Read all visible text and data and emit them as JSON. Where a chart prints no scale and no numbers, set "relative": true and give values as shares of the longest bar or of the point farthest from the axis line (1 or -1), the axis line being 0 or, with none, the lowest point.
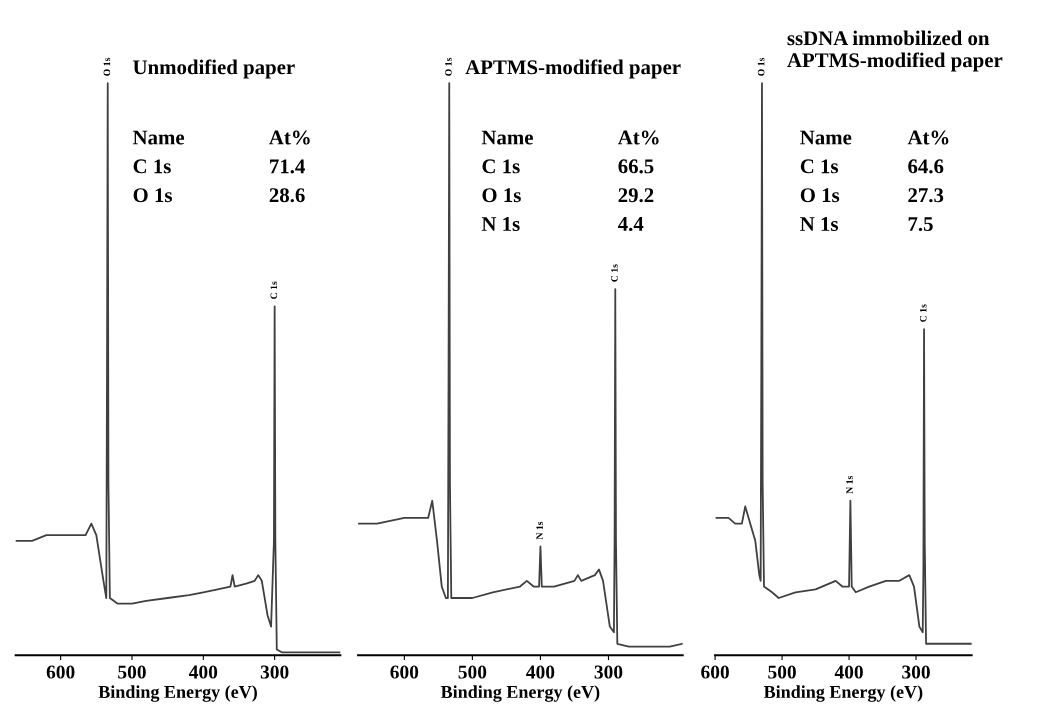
{
  "chart_data": [
    {
      "type": "line",
      "relative": true,
      "title": "Unmodified paper",
      "xlabel": "Binding Energy (eV)",
      "xlim": [
        663,
        208
      ],
      "xticks": [
        600,
        500,
        400,
        300
      ],
      "series": [
        {
          "color": "#404040",
          "x": [
            663,
            640,
            620,
            600,
            580,
            565,
            557,
            550,
            540,
            536,
            535,
            534,
            533,
            531,
            520,
            500,
            480,
            450,
            420,
            400,
            380,
            362,
            359,
            356,
            340,
            328,
            323,
            318,
            310,
            305,
            301,
            300,
            299,
            297,
            290,
            270,
            250,
            230,
            208
          ],
          "values": [
            0.2,
            0.2,
            0.21,
            0.21,
            0.21,
            0.21,
            0.23,
            0.21,
            0.13,
            0.1,
            0.5,
            1.0,
            0.3,
            0.1,
            0.09,
            0.09,
            0.095,
            0.1,
            0.105,
            0.11,
            0.115,
            0.12,
            0.14,
            0.12,
            0.125,
            0.13,
            0.14,
            0.13,
            0.07,
            0.05,
            0.2,
            0.61,
            0.2,
            0.01,
            0.005,
            0.005,
            0.005,
            0.005,
            0.005
          ]
        }
      ],
      "annotations": [
        {
          "text": "O 1s",
          "x": 534,
          "y": 1.0
        },
        {
          "text": "C 1s",
          "x": 300,
          "y": 0.61
        },
        "Name",
        "At%",
        "C 1s",
        "71.4",
        "O 1s",
        "28.6"
      ]
    },
    {
      "type": "line",
      "relative": true,
      "title": "APTMS-modified paper",
      "xlabel": "Binding Energy (eV)",
      "xlim": [
        668,
        191
      ],
      "xticks": [
        600,
        500,
        400,
        300
      ],
      "series": [
        {
          "color": "#404040",
          "x": [
            668,
            640,
            600,
            575,
            565,
            559,
            552,
            545,
            539,
            536,
            535,
            534,
            533,
            531,
            520,
            500,
            470,
            430,
            420,
            410,
            402,
            400,
            398,
            380,
            350,
            345,
            340,
            320,
            314,
            308,
            298,
            292,
            291,
            290,
            289,
            287,
            270,
            240,
            210,
            191
          ],
          "values": [
            0.23,
            0.23,
            0.24,
            0.24,
            0.24,
            0.27,
            0.2,
            0.12,
            0.1,
            0.1,
            0.5,
            1.0,
            0.3,
            0.1,
            0.1,
            0.1,
            0.11,
            0.12,
            0.13,
            0.12,
            0.12,
            0.19,
            0.12,
            0.12,
            0.13,
            0.14,
            0.13,
            0.14,
            0.15,
            0.13,
            0.05,
            0.04,
            0.2,
            0.64,
            0.2,
            0.02,
            0.015,
            0.015,
            0.015,
            0.02
          ]
        }
      ],
      "annotations": [
        {
          "text": "O 1s",
          "x": 534,
          "y": 1.0
        },
        {
          "text": "N 1s",
          "x": 400,
          "y": 0.19
        },
        {
          "text": "C 1s",
          "x": 290,
          "y": 0.64
        },
        "Name",
        "At%",
        "C 1s",
        "66.5",
        "O 1s",
        "29.2",
        "N 1s",
        "4.4"
      ]
    },
    {
      "type": "line",
      "relative": true,
      "title": "ssDNA immobilized on\nAPTMS-modified paper",
      "xlabel": "Binding Energy (eV)",
      "xlim": [
        600,
        217
      ],
      "xticks": [
        600,
        500,
        400,
        300
      ],
      "series": [
        {
          "color": "#404040",
          "x": [
            598,
            580,
            570,
            560,
            555,
            550,
            540,
            534,
            532,
            531,
            530,
            529,
            527,
            515,
            505,
            480,
            450,
            420,
            410,
            400,
            398,
            396,
            390,
            370,
            345,
            325,
            310,
            303,
            295,
            290,
            289,
            288,
            287,
            285,
            260,
            240,
            217
          ],
          "values": [
            0.24,
            0.24,
            0.23,
            0.23,
            0.26,
            0.24,
            0.2,
            0.14,
            0.13,
            0.5,
            1.0,
            0.3,
            0.12,
            0.11,
            0.1,
            0.11,
            0.115,
            0.13,
            0.12,
            0.12,
            0.27,
            0.12,
            0.11,
            0.12,
            0.13,
            0.13,
            0.14,
            0.12,
            0.05,
            0.04,
            0.15,
            0.57,
            0.2,
            0.02,
            0.02,
            0.02,
            0.02
          ]
        }
      ],
      "annotations": [
        {
          "text": "O 1s",
          "x": 530,
          "y": 1.0
        },
        {
          "text": "N 1s",
          "x": 398,
          "y": 0.27
        },
        {
          "text": "C 1s",
          "x": 288,
          "y": 0.57
        },
        "Name",
        "At%",
        "C 1s",
        "64.6",
        "O 1s",
        "27.3",
        "N 1s",
        "7.5"
      ]
    }
  ]
}
